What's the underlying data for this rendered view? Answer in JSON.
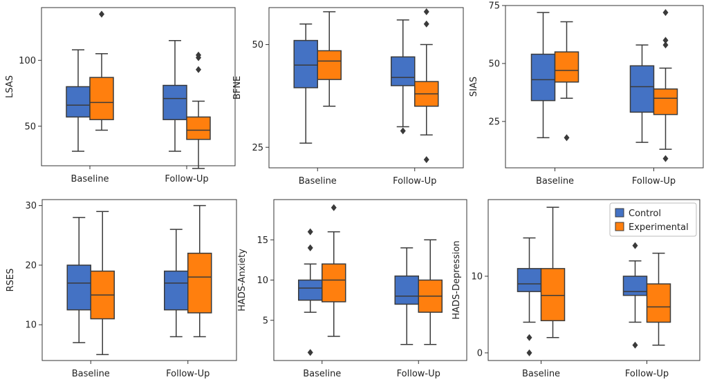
{
  "colors": {
    "control": "#4472C4",
    "experimental": "#FF7F0E",
    "line": "#3a3a3a"
  },
  "legend": {
    "placement": "top-right of panel 6",
    "items": [
      "Control",
      "Experimental"
    ]
  },
  "chart_data": [
    {
      "type": "box",
      "ylabel": "LSAS",
      "categories": [
        "Baseline",
        "Follow-Up"
      ],
      "ylim": [
        20,
        140
      ],
      "yticks": [
        50,
        100
      ],
      "series": [
        {
          "name": "Control",
          "boxes": [
            {
              "whislo": 31,
              "q1": 57,
              "med": 66,
              "q3": 80,
              "whishi": 108,
              "fliers": []
            },
            {
              "whislo": 31,
              "q1": 55,
              "med": 71,
              "q3": 81,
              "whishi": 115,
              "fliers": []
            }
          ]
        },
        {
          "name": "Experimental",
          "boxes": [
            {
              "whislo": 47,
              "q1": 55,
              "med": 68,
              "q3": 87,
              "whishi": 105,
              "fliers": [
                135
              ]
            },
            {
              "whislo": 18,
              "q1": 40,
              "med": 47,
              "q3": 57,
              "whishi": 69,
              "fliers": [
                93,
                102,
                104
              ]
            }
          ]
        }
      ]
    },
    {
      "type": "box",
      "ylabel": "BFNE",
      "categories": [
        "Baseline",
        "Follow-Up"
      ],
      "ylim": [
        20,
        59
      ],
      "yticks": [
        25,
        50
      ],
      "series": [
        {
          "name": "Control",
          "boxes": [
            {
              "whislo": 26,
              "q1": 39.5,
              "med": 45,
              "q3": 51,
              "whishi": 55,
              "fliers": []
            },
            {
              "whislo": 30,
              "q1": 40,
              "med": 42,
              "q3": 47,
              "whishi": 56,
              "fliers": [
                29
              ]
            }
          ]
        },
        {
          "name": "Experimental",
          "boxes": [
            {
              "whislo": 35,
              "q1": 41.5,
              "med": 46,
              "q3": 48.5,
              "whishi": 58,
              "fliers": []
            },
            {
              "whislo": 28,
              "q1": 35,
              "med": 38,
              "q3": 41,
              "whishi": 50,
              "fliers": [
                22,
                55,
                58
              ]
            }
          ]
        }
      ]
    },
    {
      "type": "box",
      "ylabel": "SIAS",
      "categories": [
        "Baseline",
        "Follow-Up"
      ],
      "ylim": [
        5,
        75
      ],
      "yticks": [
        25,
        50,
        75
      ],
      "series": [
        {
          "name": "Control",
          "boxes": [
            {
              "whislo": 18,
              "q1": 34,
              "med": 43,
              "q3": 54,
              "whishi": 72,
              "fliers": []
            },
            {
              "whislo": 16,
              "q1": 29,
              "med": 40,
              "q3": 49,
              "whishi": 58,
              "fliers": []
            }
          ]
        },
        {
          "name": "Experimental",
          "boxes": [
            {
              "whislo": 35,
              "q1": 42,
              "med": 47,
              "q3": 55,
              "whishi": 68,
              "fliers": [
                18
              ]
            },
            {
              "whislo": 13,
              "q1": 28,
              "med": 35,
              "q3": 39,
              "whishi": 48,
              "fliers": [
                9,
                58,
                60,
                72
              ]
            }
          ]
        }
      ]
    },
    {
      "type": "box",
      "ylabel": "RSES",
      "categories": [
        "Baseline",
        "Follow-Up"
      ],
      "ylim": [
        4,
        31
      ],
      "yticks": [
        10,
        20,
        30
      ],
      "series": [
        {
          "name": "Control",
          "boxes": [
            {
              "whislo": 7,
              "q1": 12.5,
              "med": 17,
              "q3": 20,
              "whishi": 28,
              "fliers": []
            },
            {
              "whislo": 8,
              "q1": 12.5,
              "med": 17,
              "q3": 19,
              "whishi": 26,
              "fliers": []
            }
          ]
        },
        {
          "name": "Experimental",
          "boxes": [
            {
              "whislo": 5,
              "q1": 11,
              "med": 15,
              "q3": 19,
              "whishi": 29,
              "fliers": []
            },
            {
              "whislo": 8,
              "q1": 12,
              "med": 18,
              "q3": 22,
              "whishi": 30,
              "fliers": []
            }
          ]
        }
      ]
    },
    {
      "type": "box",
      "ylabel": "HADS-Anxiety",
      "categories": [
        "Baseline",
        "Follow-Up"
      ],
      "ylim": [
        0,
        20
      ],
      "yticks": [
        5,
        10,
        15
      ],
      "series": [
        {
          "name": "Control",
          "boxes": [
            {
              "whislo": 6,
              "q1": 7.5,
              "med": 9,
              "q3": 10,
              "whishi": 12,
              "fliers": [
                1,
                14,
                16
              ]
            },
            {
              "whislo": 2,
              "q1": 7,
              "med": 8,
              "q3": 10.5,
              "whishi": 14,
              "fliers": []
            }
          ]
        },
        {
          "name": "Experimental",
          "boxes": [
            {
              "whislo": 3,
              "q1": 7.3,
              "med": 10,
              "q3": 12,
              "whishi": 16,
              "fliers": [
                19
              ]
            },
            {
              "whislo": 2,
              "q1": 6,
              "med": 8,
              "q3": 10,
              "whishi": 15,
              "fliers": []
            }
          ]
        }
      ]
    },
    {
      "type": "box",
      "ylabel": "HADS-Depression",
      "categories": [
        "Baseline",
        "Follow-Up"
      ],
      "ylim": [
        -1,
        20
      ],
      "yticks": [
        0,
        10
      ],
      "series": [
        {
          "name": "Control",
          "boxes": [
            {
              "whislo": 4,
              "q1": 8,
              "med": 9,
              "q3": 11,
              "whishi": 15,
              "fliers": [
                0,
                2
              ]
            },
            {
              "whislo": 4,
              "q1": 7.5,
              "med": 8,
              "q3": 10,
              "whishi": 12,
              "fliers": [
                1,
                14
              ]
            }
          ]
        },
        {
          "name": "Experimental",
          "boxes": [
            {
              "whislo": 2,
              "q1": 4.2,
              "med": 7.5,
              "q3": 11,
              "whishi": 19,
              "fliers": []
            },
            {
              "whislo": 1,
              "q1": 4,
              "med": 6,
              "q3": 9,
              "whishi": 13,
              "fliers": []
            }
          ]
        }
      ]
    }
  ]
}
